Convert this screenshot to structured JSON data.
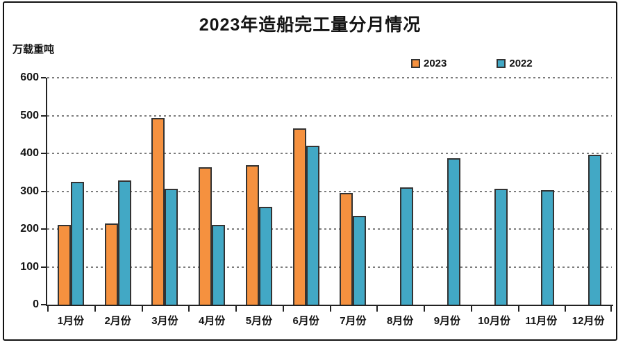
{
  "chart_data": {
    "type": "bar",
    "title": "2023年造船完工量分月情况",
    "unit_label": "万载重吨",
    "categories": [
      "1月份",
      "2月份",
      "3月份",
      "4月份",
      "5月份",
      "6月份",
      "7月份",
      "8月份",
      "9月份",
      "10月份",
      "11月份",
      "12月份"
    ],
    "series": [
      {
        "name": "2023",
        "color": "#F5913F",
        "values": [
          211,
          214,
          493,
          364,
          369,
          466,
          295,
          null,
          null,
          null,
          null,
          null
        ]
      },
      {
        "name": "2022",
        "color": "#42A8C5",
        "values": [
          325,
          329,
          307,
          211,
          258,
          421,
          235,
          310,
          387,
          307,
          302,
          396
        ]
      }
    ],
    "ylim": [
      0,
      600
    ],
    "yticks": [
      0,
      100,
      200,
      300,
      400,
      500,
      600
    ],
    "xlabel": "",
    "ylabel": "万载重吨",
    "grid": "horizontal-dashed",
    "grid_color": "#7c7c7c",
    "axis_color": "#222222",
    "legend_position": "top-right"
  }
}
